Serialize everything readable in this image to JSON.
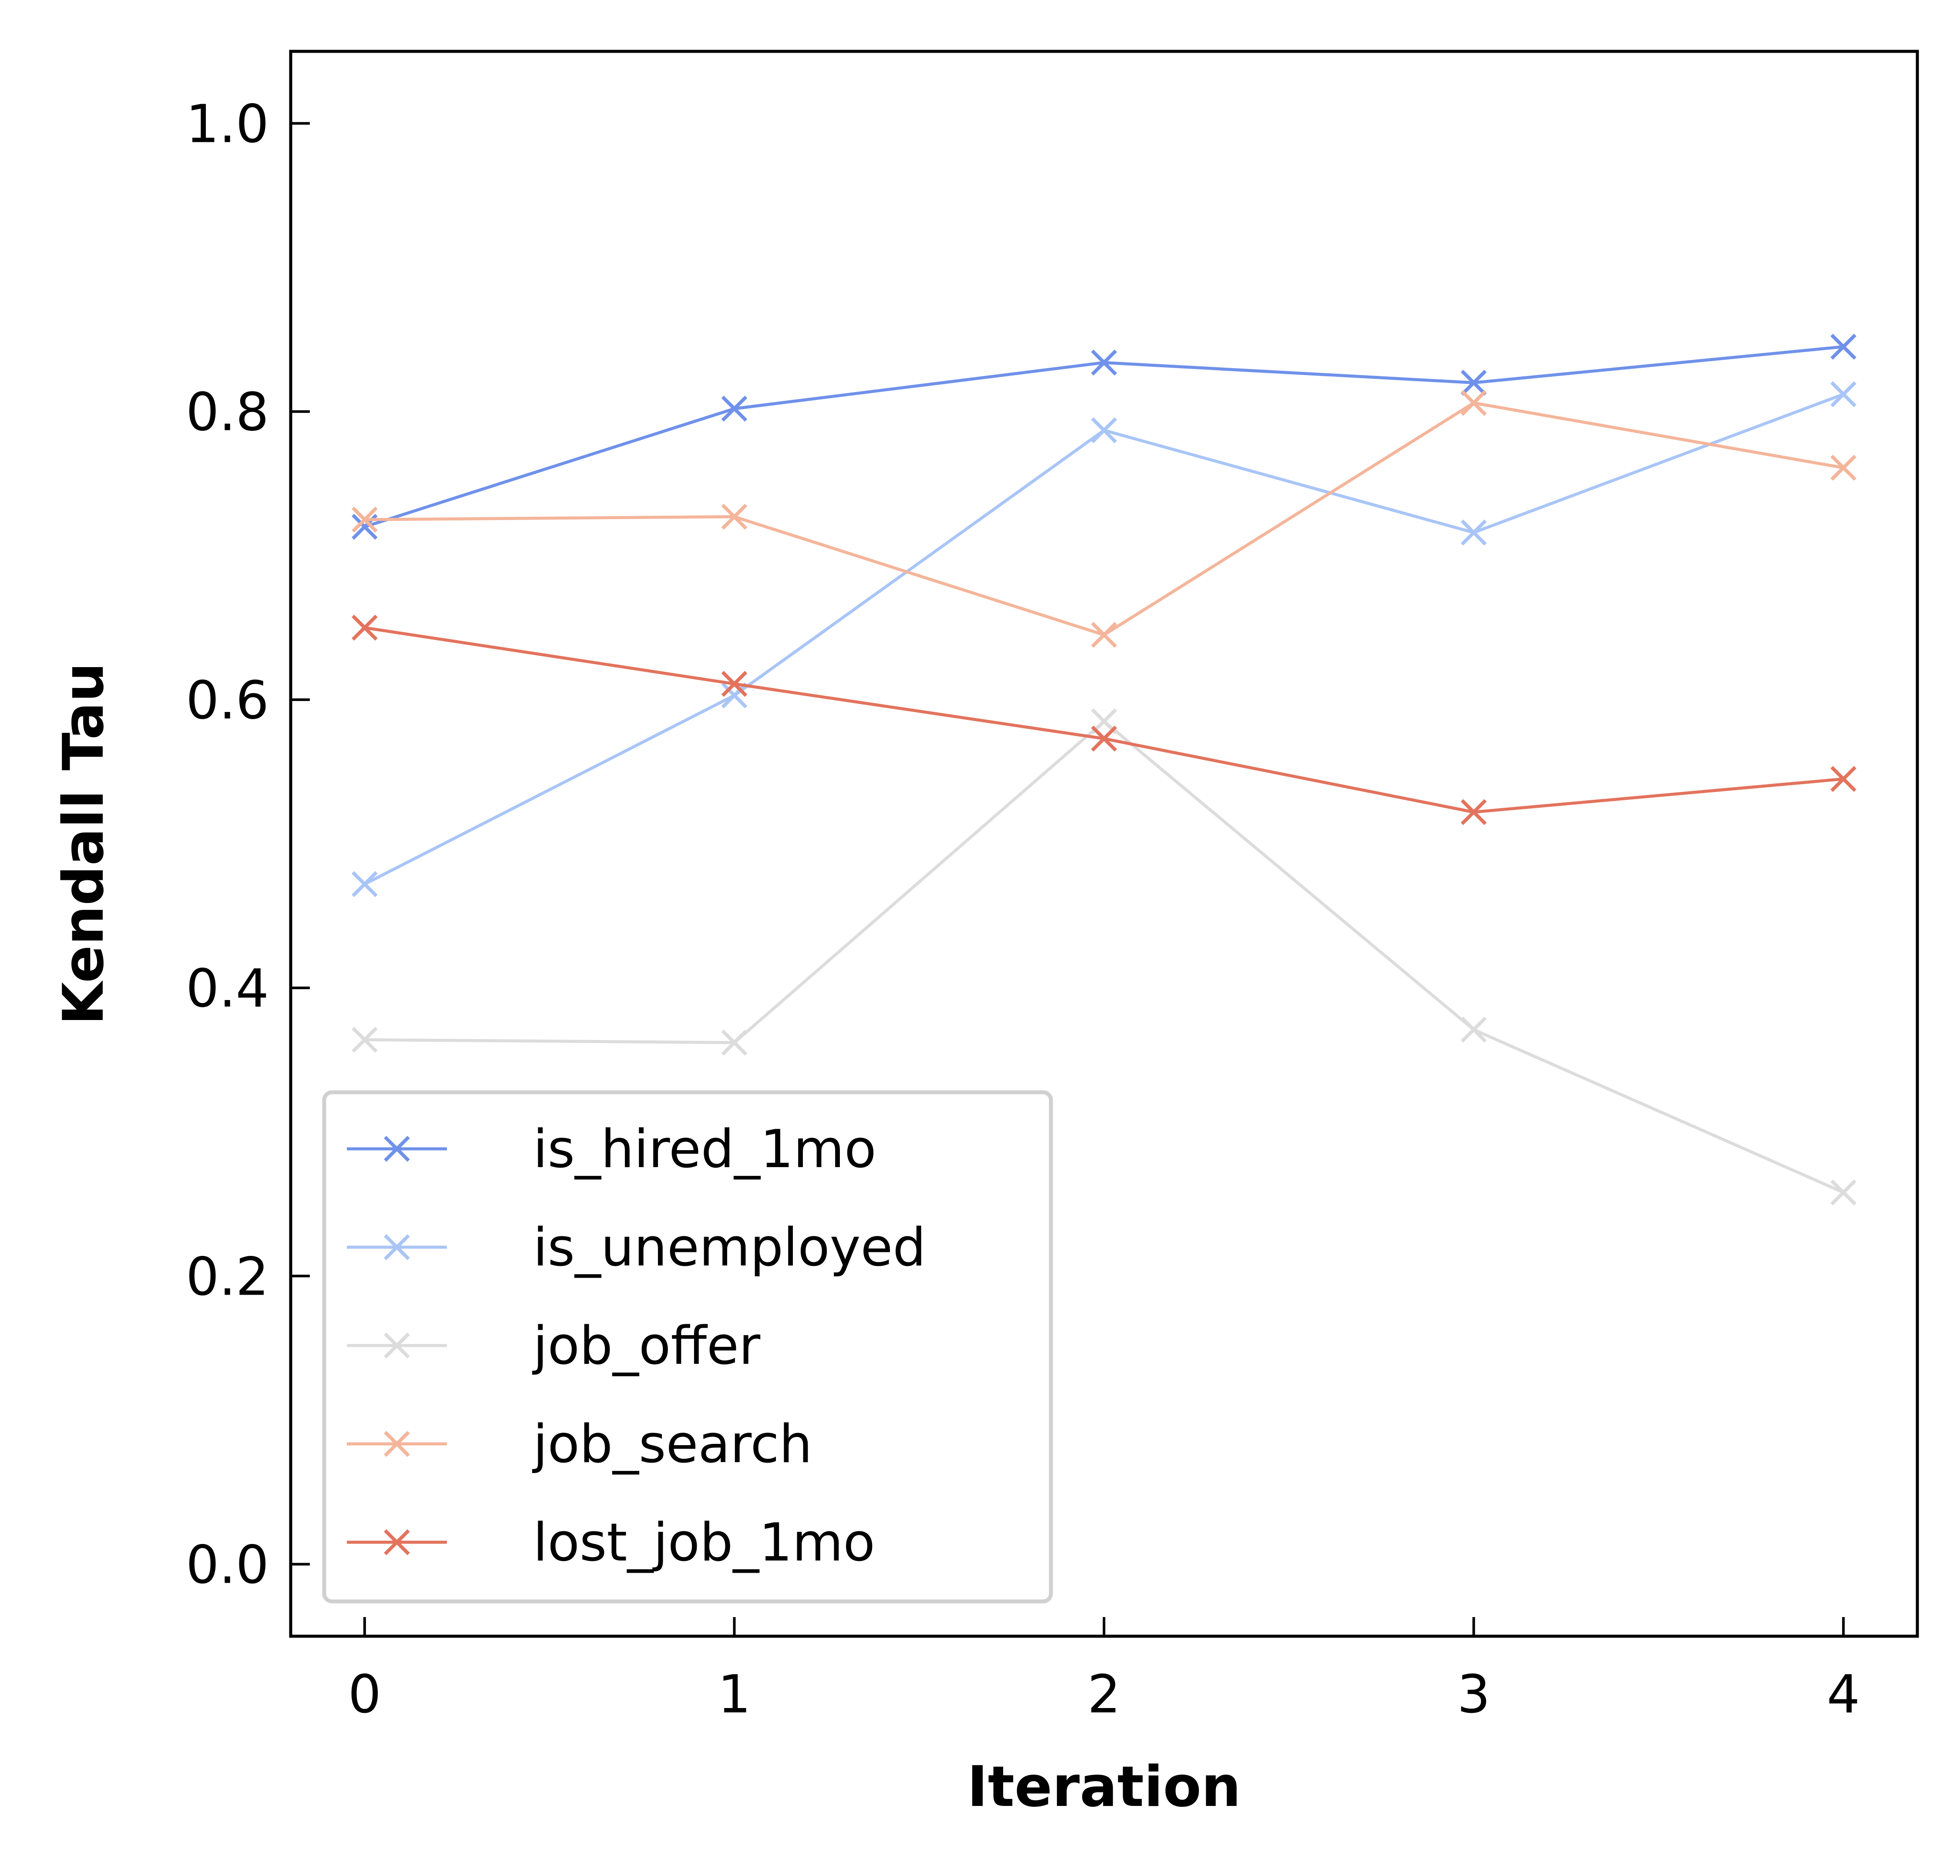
{
  "chart_data": {
    "type": "line",
    "xlabel": "Iteration",
    "ylabel": "Kendall Tau",
    "x": [
      0,
      1,
      2,
      3,
      4
    ],
    "xlim": [
      -0.2,
      4.2
    ],
    "ylim": [
      -0.05,
      1.05
    ],
    "xticks": [
      "0",
      "1",
      "2",
      "3",
      "4"
    ],
    "yticks": [
      "0.0",
      "0.2",
      "0.4",
      "0.6",
      "0.8",
      "1.0"
    ],
    "grid": false,
    "legend_position": "lower-left",
    "marker": "x",
    "series": [
      {
        "name": "is_hired_1mo",
        "color": "#6f91ea",
        "values": [
          0.72,
          0.802,
          0.834,
          0.82,
          0.845
        ]
      },
      {
        "name": "is_unemployed",
        "color": "#a9c5f7",
        "values": [
          0.472,
          0.603,
          0.787,
          0.716,
          0.812
        ]
      },
      {
        "name": "job_offer",
        "color": "#dcdcdc",
        "values": [
          0.364,
          0.362,
          0.585,
          0.371,
          0.258
        ]
      },
      {
        "name": "job_search",
        "color": "#f4b59a",
        "values": [
          0.725,
          0.727,
          0.645,
          0.806,
          0.761
        ]
      },
      {
        "name": "lost_job_1mo",
        "color": "#e3735d",
        "values": [
          0.65,
          0.611,
          0.573,
          0.522,
          0.545
        ]
      }
    ]
  }
}
